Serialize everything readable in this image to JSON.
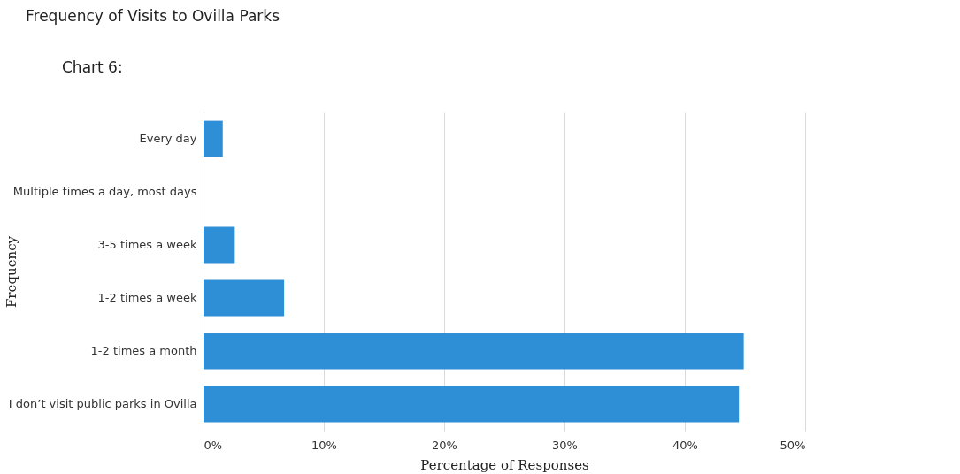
{
  "chart_data": {
    "type": "bar",
    "orientation": "horizontal",
    "title": "Frequency of Visits to Ovilla Parks",
    "annotations": [
      "Chart 6:"
    ],
    "xlabel": "Percentage of Responses",
    "ylabel": "Frequency",
    "categories": [
      "Every day",
      "Multiple times a day, most days",
      "3-5 times a week",
      "1-2 times a week",
      "1-2 times a month",
      "I don’t visit public parks in Ovilla"
    ],
    "values": [
      1.6,
      0,
      2.6,
      6.7,
      44.9,
      44.5
    ],
    "color": "#2e8fd6",
    "xlim": [
      0,
      50
    ],
    "xticks": [
      {
        "value": 0,
        "label": "0%"
      },
      {
        "value": 10,
        "label": "10%"
      },
      {
        "value": 20,
        "label": "20%"
      },
      {
        "value": 30,
        "label": "30%"
      },
      {
        "value": 40,
        "label": "40%"
      },
      {
        "value": 50,
        "label": "50%"
      }
    ],
    "grid": "x"
  }
}
